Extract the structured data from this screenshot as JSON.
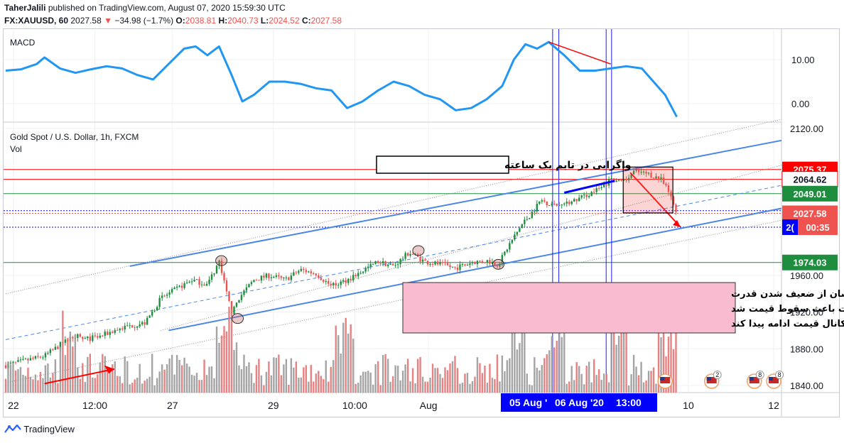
{
  "header": {
    "author": "TaherJalili",
    "published_text": " published on TradingView.com, August 07, 2020 15:59:30 UTC",
    "symbol": "FX:XAUUSD, 60",
    "last": "2027.58",
    "change": "−34.98 (−1.7%)",
    "open_label": "O:",
    "open": "2038.81",
    "high_label": "H:",
    "high": "2040.73",
    "low_label": "L:",
    "low": "2024.52",
    "close_label": "C:",
    "close": "2027.58"
  },
  "macd_pane": {
    "label": "MACD",
    "ticks": [
      "10.00",
      "0.00"
    ]
  },
  "price_pane": {
    "title": "Gold Spot / U.S. Dollar, 1h, FXCM",
    "vol_label": "Vol",
    "ticks": [
      "2120.00",
      "1960.00",
      "1920.00",
      "1880.00",
      "1840.00"
    ]
  },
  "price_labels": [
    {
      "text": "2075.37",
      "price": 2075.37,
      "bg": "#ff0000"
    },
    {
      "text": "2064.62",
      "price": 2064.62,
      "bg": "#ffffff"
    },
    {
      "text": "2049.01",
      "price": 2049.01,
      "bg": "#1e8e3e"
    },
    {
      "text": "2027.58",
      "price": 2027.58,
      "bg": "#ef5350"
    },
    {
      "text": "2(",
      "price": 2012.5,
      "bg": "#0000ff"
    },
    {
      "text": "00:35",
      "price": 2012.5,
      "bg": "#ef5350"
    },
    {
      "text": "1974.03",
      "price": 1974.03,
      "bg": "#1e8e3e"
    }
  ],
  "x_axis": {
    "ticks": [
      "22",
      "12:00",
      "27",
      "29",
      "10:00",
      "Aug",
      "10",
      "12"
    ],
    "crosshair_labels": [
      "05 Aug '",
      "06 Aug '20",
      "13:00"
    ]
  },
  "annotations": {
    "box1": "واگرایی در تایم یک ساعته",
    "box2_lines": [
      "واگرایی در تایم فریم یک ساعته  نشان از ضعیف شدن قدرت",
      "خریداران بود و همانطور که می‌بینید در نهایت باعث سقوط قیمت شد",
      "و این افت قیمت می‌تواند تا خط روند پایین کانال قیمت ادامه پیدا کند"
    ]
  },
  "event_badges": [
    "2",
    "8",
    "8"
  ],
  "footer": {
    "brand": "TradingView"
  },
  "colors": {
    "up": "#1e8e3e",
    "down": "#ef5350",
    "macd": "#2196f3",
    "channel": "#4a86e8",
    "annotation_bg": "#f8bbd0"
  },
  "chart_data": {
    "type": "line",
    "title": "Gold Spot / U.S. Dollar, 1h, FXCM",
    "price_range": [
      1835,
      2140
    ],
    "price_levels": [
      2075.37,
      2064.62,
      2049.01,
      2027.58,
      1974.03
    ],
    "price_path": [
      {
        "x": 0,
        "y": 1862
      },
      {
        "x": 3,
        "y": 1868
      },
      {
        "x": 5,
        "y": 1872
      },
      {
        "x": 7,
        "y": 1884
      },
      {
        "x": 9,
        "y": 1895
      },
      {
        "x": 10,
        "y": 1890
      },
      {
        "x": 12,
        "y": 1893
      },
      {
        "x": 14,
        "y": 1900
      },
      {
        "x": 16,
        "y": 1905
      },
      {
        "x": 18,
        "y": 1908
      },
      {
        "x": 20,
        "y": 1935
      },
      {
        "x": 22,
        "y": 1945
      },
      {
        "x": 24,
        "y": 1955
      },
      {
        "x": 26,
        "y": 1950
      },
      {
        "x": 27.5,
        "y": 1975
      },
      {
        "x": 28.5,
        "y": 1940
      },
      {
        "x": 29.2,
        "y": 1918
      },
      {
        "x": 30,
        "y": 1935
      },
      {
        "x": 32,
        "y": 1955
      },
      {
        "x": 34,
        "y": 1960
      },
      {
        "x": 36,
        "y": 1955
      },
      {
        "x": 38,
        "y": 1966
      },
      {
        "x": 40,
        "y": 1962
      },
      {
        "x": 42,
        "y": 1948
      },
      {
        "x": 44,
        "y": 1955
      },
      {
        "x": 46,
        "y": 1965
      },
      {
        "x": 48,
        "y": 1975
      },
      {
        "x": 50,
        "y": 1970
      },
      {
        "x": 52,
        "y": 1985
      },
      {
        "x": 54,
        "y": 1975
      },
      {
        "x": 56,
        "y": 1972
      },
      {
        "x": 58,
        "y": 1968
      },
      {
        "x": 60,
        "y": 1974
      },
      {
        "x": 62,
        "y": 1976
      },
      {
        "x": 63.5,
        "y": 1972
      },
      {
        "x": 65,
        "y": 1995
      },
      {
        "x": 66.5,
        "y": 2015
      },
      {
        "x": 67.5,
        "y": 2025
      },
      {
        "x": 69,
        "y": 2042
      },
      {
        "x": 71,
        "y": 2035
      },
      {
        "x": 73,
        "y": 2040
      },
      {
        "x": 75,
        "y": 2048
      },
      {
        "x": 77,
        "y": 2056
      },
      {
        "x": 78,
        "y": 2065
      },
      {
        "x": 79.5,
        "y": 2060
      },
      {
        "x": 81,
        "y": 2073
      },
      {
        "x": 83,
        "y": 2070
      },
      {
        "x": 84.5,
        "y": 2064
      },
      {
        "x": 85.5,
        "y": 2050
      },
      {
        "x": 86.5,
        "y": 2027.58
      }
    ],
    "macd_range": [
      -4,
      15
    ],
    "macd": [
      {
        "x": 0,
        "y": 7.5
      },
      {
        "x": 2,
        "y": 7.8
      },
      {
        "x": 4,
        "y": 9
      },
      {
        "x": 5,
        "y": 10.5
      },
      {
        "x": 7,
        "y": 8
      },
      {
        "x": 9,
        "y": 7
      },
      {
        "x": 11,
        "y": 7.8
      },
      {
        "x": 13,
        "y": 8.5
      },
      {
        "x": 15,
        "y": 8
      },
      {
        "x": 17,
        "y": 6.5
      },
      {
        "x": 19,
        "y": 5.5
      },
      {
        "x": 21,
        "y": 9
      },
      {
        "x": 23,
        "y": 12.5
      },
      {
        "x": 24.5,
        "y": 13
      },
      {
        "x": 26,
        "y": 11
      },
      {
        "x": 27.5,
        "y": 13
      },
      {
        "x": 29,
        "y": 7
      },
      {
        "x": 30.5,
        "y": 0.5
      },
      {
        "x": 32,
        "y": 2
      },
      {
        "x": 34,
        "y": 5
      },
      {
        "x": 36,
        "y": 5
      },
      {
        "x": 38,
        "y": 4.5
      },
      {
        "x": 40,
        "y": 3.5
      },
      {
        "x": 42,
        "y": 3
      },
      {
        "x": 44,
        "y": -1
      },
      {
        "x": 46,
        "y": 0.5
      },
      {
        "x": 48,
        "y": 3
      },
      {
        "x": 50,
        "y": 5
      },
      {
        "x": 52,
        "y": 4
      },
      {
        "x": 54,
        "y": 2
      },
      {
        "x": 56,
        "y": 1
      },
      {
        "x": 58,
        "y": -1.5
      },
      {
        "x": 60,
        "y": -1
      },
      {
        "x": 62,
        "y": 1
      },
      {
        "x": 64,
        "y": 4
      },
      {
        "x": 65.5,
        "y": 10
      },
      {
        "x": 67,
        "y": 13.5
      },
      {
        "x": 68.5,
        "y": 12.5
      },
      {
        "x": 70,
        "y": 14
      },
      {
        "x": 72,
        "y": 11
      },
      {
        "x": 74,
        "y": 7.5
      },
      {
        "x": 76,
        "y": 7.5
      },
      {
        "x": 78,
        "y": 8
      },
      {
        "x": 80,
        "y": 8.5
      },
      {
        "x": 82,
        "y": 8
      },
      {
        "x": 83.5,
        "y": 5
      },
      {
        "x": 85,
        "y": 2
      },
      {
        "x": 86.5,
        "y": -3
      }
    ],
    "macd_divergence": [
      {
        "x": 70,
        "y": 14
      },
      {
        "x": 78,
        "y": 9
      }
    ],
    "price_divergence": [
      {
        "x": 72,
        "y": 2050
      },
      {
        "x": 78.5,
        "y": 2063
      }
    ],
    "fall_arrow": [
      {
        "x": 80.5,
        "y": 2072
      },
      {
        "x": 87,
        "y": 2012.5
      }
    ],
    "channel_upper": [
      {
        "x": 16,
        "y": 1970
      },
      {
        "x": 100,
        "y": 2107
      }
    ],
    "channel_lower": [
      {
        "x": 21,
        "y": 1900
      },
      {
        "x": 100,
        "y": 2033
      }
    ],
    "channel_mid": [
      {
        "x": 0,
        "y": 1890
      },
      {
        "x": 100,
        "y": 2058
      }
    ],
    "x_ticks": [
      {
        "label": "22",
        "x": 1
      },
      {
        "label": "12:00",
        "x": 11.5
      },
      {
        "label": "27",
        "x": 21.5
      },
      {
        "label": "29",
        "x": 34.5
      },
      {
        "label": "10:00",
        "x": 45
      },
      {
        "label": "Aug",
        "x": 54.5
      },
      {
        "label": "10",
        "x": 88
      },
      {
        "label": "12",
        "x": 99
      }
    ]
  }
}
